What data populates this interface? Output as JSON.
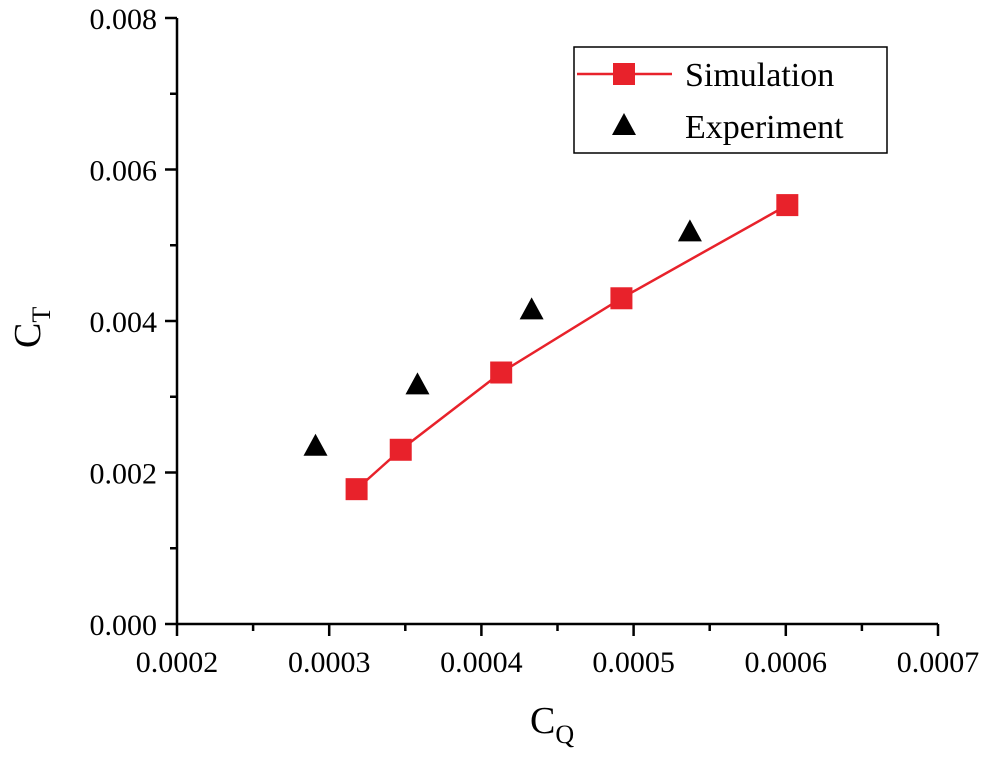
{
  "chart_data": {
    "type": "scatter",
    "xlabel": {
      "main": "C",
      "sub": "Q"
    },
    "ylabel": {
      "main": "C",
      "sub": "T"
    },
    "xlim": [
      0.0002,
      0.0007
    ],
    "ylim": [
      0.0,
      0.008
    ],
    "x_ticks": [
      "0.0002",
      "0.0003",
      "0.0004",
      "0.0005",
      "0.0006",
      "0.0007"
    ],
    "y_ticks": [
      "0.000",
      "0.002",
      "0.004",
      "0.006",
      "0.008"
    ],
    "x_tick_values": [
      0.0002,
      0.0003,
      0.0004,
      0.0005,
      0.0006,
      0.0007
    ],
    "y_tick_values": [
      0.0,
      0.002,
      0.004,
      0.006,
      0.008
    ],
    "legend_position": "top-right",
    "series": [
      {
        "name": "Simulation",
        "marker": "square",
        "line": true,
        "color": "#e8222b",
        "x": [
          0.000318,
          0.000347,
          0.000413,
          0.000492,
          0.000601
        ],
        "y": [
          0.00178,
          0.0023,
          0.00332,
          0.0043,
          0.00553
        ]
      },
      {
        "name": "Experiment",
        "marker": "triangle",
        "line": false,
        "color": "#000000",
        "x": [
          0.000291,
          0.000358,
          0.000433,
          0.000537
        ],
        "y": [
          0.00234,
          0.00315,
          0.00414,
          0.00517
        ]
      }
    ]
  }
}
